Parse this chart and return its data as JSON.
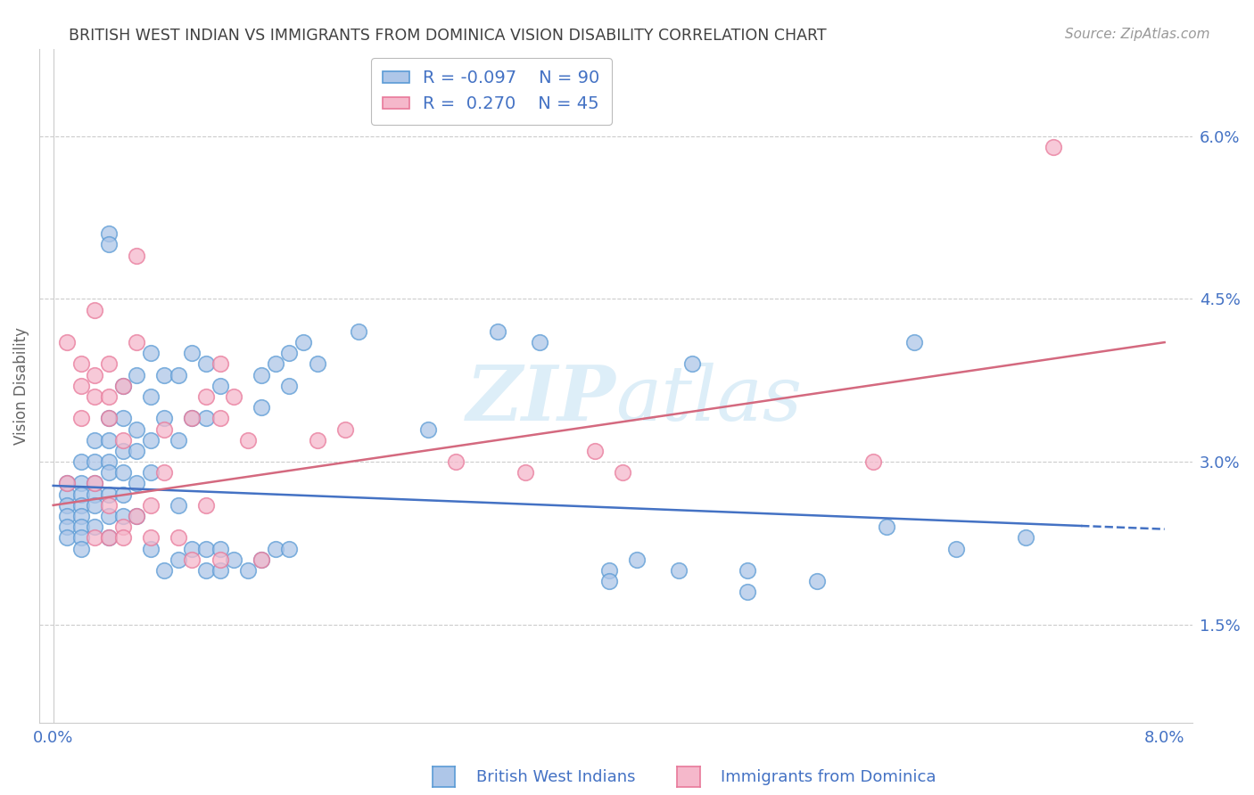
{
  "title": "BRITISH WEST INDIAN VS IMMIGRANTS FROM DOMINICA VISION DISABILITY CORRELATION CHART",
  "source": "Source: ZipAtlas.com",
  "ylabel": "Vision Disability",
  "ytick_labels": [
    "1.5%",
    "3.0%",
    "4.5%",
    "6.0%"
  ],
  "ytick_values": [
    0.015,
    0.03,
    0.045,
    0.06
  ],
  "xtick_values": [
    0.0,
    0.02,
    0.04,
    0.06,
    0.08
  ],
  "xlim": [
    -0.001,
    0.082
  ],
  "ylim": [
    0.006,
    0.068
  ],
  "legend_r_blue": "-0.097",
  "legend_n_blue": "90",
  "legend_r_pink": "0.270",
  "legend_n_pink": "45",
  "label_blue": "British West Indians",
  "label_pink": "Immigrants from Dominica",
  "scatter_blue": [
    [
      0.001,
      0.028
    ],
    [
      0.001,
      0.027
    ],
    [
      0.001,
      0.026
    ],
    [
      0.001,
      0.025
    ],
    [
      0.001,
      0.024
    ],
    [
      0.001,
      0.023
    ],
    [
      0.002,
      0.03
    ],
    [
      0.002,
      0.028
    ],
    [
      0.002,
      0.027
    ],
    [
      0.002,
      0.026
    ],
    [
      0.002,
      0.025
    ],
    [
      0.002,
      0.024
    ],
    [
      0.002,
      0.023
    ],
    [
      0.002,
      0.022
    ],
    [
      0.003,
      0.032
    ],
    [
      0.003,
      0.03
    ],
    [
      0.003,
      0.028
    ],
    [
      0.003,
      0.027
    ],
    [
      0.003,
      0.026
    ],
    [
      0.003,
      0.024
    ],
    [
      0.004,
      0.051
    ],
    [
      0.004,
      0.05
    ],
    [
      0.004,
      0.034
    ],
    [
      0.004,
      0.032
    ],
    [
      0.004,
      0.03
    ],
    [
      0.004,
      0.029
    ],
    [
      0.004,
      0.027
    ],
    [
      0.004,
      0.025
    ],
    [
      0.004,
      0.023
    ],
    [
      0.005,
      0.037
    ],
    [
      0.005,
      0.034
    ],
    [
      0.005,
      0.031
    ],
    [
      0.005,
      0.029
    ],
    [
      0.005,
      0.027
    ],
    [
      0.005,
      0.025
    ],
    [
      0.006,
      0.038
    ],
    [
      0.006,
      0.033
    ],
    [
      0.006,
      0.031
    ],
    [
      0.006,
      0.028
    ],
    [
      0.006,
      0.025
    ],
    [
      0.007,
      0.04
    ],
    [
      0.007,
      0.036
    ],
    [
      0.007,
      0.032
    ],
    [
      0.007,
      0.029
    ],
    [
      0.007,
      0.022
    ],
    [
      0.008,
      0.038
    ],
    [
      0.008,
      0.034
    ],
    [
      0.008,
      0.02
    ],
    [
      0.009,
      0.038
    ],
    [
      0.009,
      0.032
    ],
    [
      0.009,
      0.026
    ],
    [
      0.009,
      0.021
    ],
    [
      0.01,
      0.04
    ],
    [
      0.01,
      0.034
    ],
    [
      0.01,
      0.022
    ],
    [
      0.011,
      0.039
    ],
    [
      0.011,
      0.034
    ],
    [
      0.011,
      0.022
    ],
    [
      0.011,
      0.02
    ],
    [
      0.012,
      0.037
    ],
    [
      0.012,
      0.022
    ],
    [
      0.012,
      0.02
    ],
    [
      0.013,
      0.021
    ],
    [
      0.014,
      0.02
    ],
    [
      0.015,
      0.038
    ],
    [
      0.015,
      0.035
    ],
    [
      0.015,
      0.021
    ],
    [
      0.016,
      0.039
    ],
    [
      0.016,
      0.022
    ],
    [
      0.017,
      0.04
    ],
    [
      0.017,
      0.037
    ],
    [
      0.017,
      0.022
    ],
    [
      0.018,
      0.041
    ],
    [
      0.019,
      0.039
    ],
    [
      0.022,
      0.042
    ],
    [
      0.027,
      0.033
    ],
    [
      0.032,
      0.042
    ],
    [
      0.035,
      0.041
    ],
    [
      0.04,
      0.02
    ],
    [
      0.04,
      0.019
    ],
    [
      0.042,
      0.021
    ],
    [
      0.045,
      0.02
    ],
    [
      0.046,
      0.039
    ],
    [
      0.05,
      0.02
    ],
    [
      0.05,
      0.018
    ],
    [
      0.055,
      0.019
    ],
    [
      0.06,
      0.024
    ],
    [
      0.062,
      0.041
    ],
    [
      0.065,
      0.022
    ],
    [
      0.07,
      0.023
    ]
  ],
  "scatter_pink": [
    [
      0.001,
      0.028
    ],
    [
      0.001,
      0.041
    ],
    [
      0.002,
      0.039
    ],
    [
      0.002,
      0.037
    ],
    [
      0.002,
      0.034
    ],
    [
      0.003,
      0.044
    ],
    [
      0.003,
      0.038
    ],
    [
      0.003,
      0.036
    ],
    [
      0.003,
      0.028
    ],
    [
      0.003,
      0.023
    ],
    [
      0.004,
      0.039
    ],
    [
      0.004,
      0.036
    ],
    [
      0.004,
      0.034
    ],
    [
      0.004,
      0.026
    ],
    [
      0.004,
      0.023
    ],
    [
      0.005,
      0.037
    ],
    [
      0.005,
      0.032
    ],
    [
      0.005,
      0.024
    ],
    [
      0.005,
      0.023
    ],
    [
      0.006,
      0.049
    ],
    [
      0.006,
      0.041
    ],
    [
      0.006,
      0.025
    ],
    [
      0.007,
      0.026
    ],
    [
      0.007,
      0.023
    ],
    [
      0.008,
      0.033
    ],
    [
      0.008,
      0.029
    ],
    [
      0.009,
      0.023
    ],
    [
      0.01,
      0.034
    ],
    [
      0.01,
      0.021
    ],
    [
      0.011,
      0.036
    ],
    [
      0.011,
      0.026
    ],
    [
      0.012,
      0.039
    ],
    [
      0.012,
      0.034
    ],
    [
      0.012,
      0.021
    ],
    [
      0.013,
      0.036
    ],
    [
      0.014,
      0.032
    ],
    [
      0.015,
      0.021
    ],
    [
      0.019,
      0.032
    ],
    [
      0.021,
      0.033
    ],
    [
      0.029,
      0.03
    ],
    [
      0.034,
      0.029
    ],
    [
      0.039,
      0.031
    ],
    [
      0.041,
      0.029
    ],
    [
      0.059,
      0.03
    ],
    [
      0.072,
      0.059
    ]
  ],
  "trend_blue_start_x": 0.0,
  "trend_blue_start_y": 0.0278,
  "trend_blue_end_x": 0.08,
  "trend_blue_end_y": 0.0238,
  "trend_blue_solid_end_x": 0.074,
  "trend_pink_start_x": 0.0,
  "trend_pink_start_y": 0.026,
  "trend_pink_end_x": 0.08,
  "trend_pink_end_y": 0.041,
  "blue_fill_color": "#aec6e8",
  "pink_fill_color": "#f5b8cb",
  "blue_edge_color": "#5b9bd5",
  "pink_edge_color": "#e8799a",
  "blue_line_color": "#4472c4",
  "pink_line_color": "#d4697f",
  "axis_label_color": "#4472c4",
  "title_color": "#404040",
  "grid_color": "#cccccc",
  "watermark_color": "#ddeef8",
  "background_color": "#ffffff"
}
